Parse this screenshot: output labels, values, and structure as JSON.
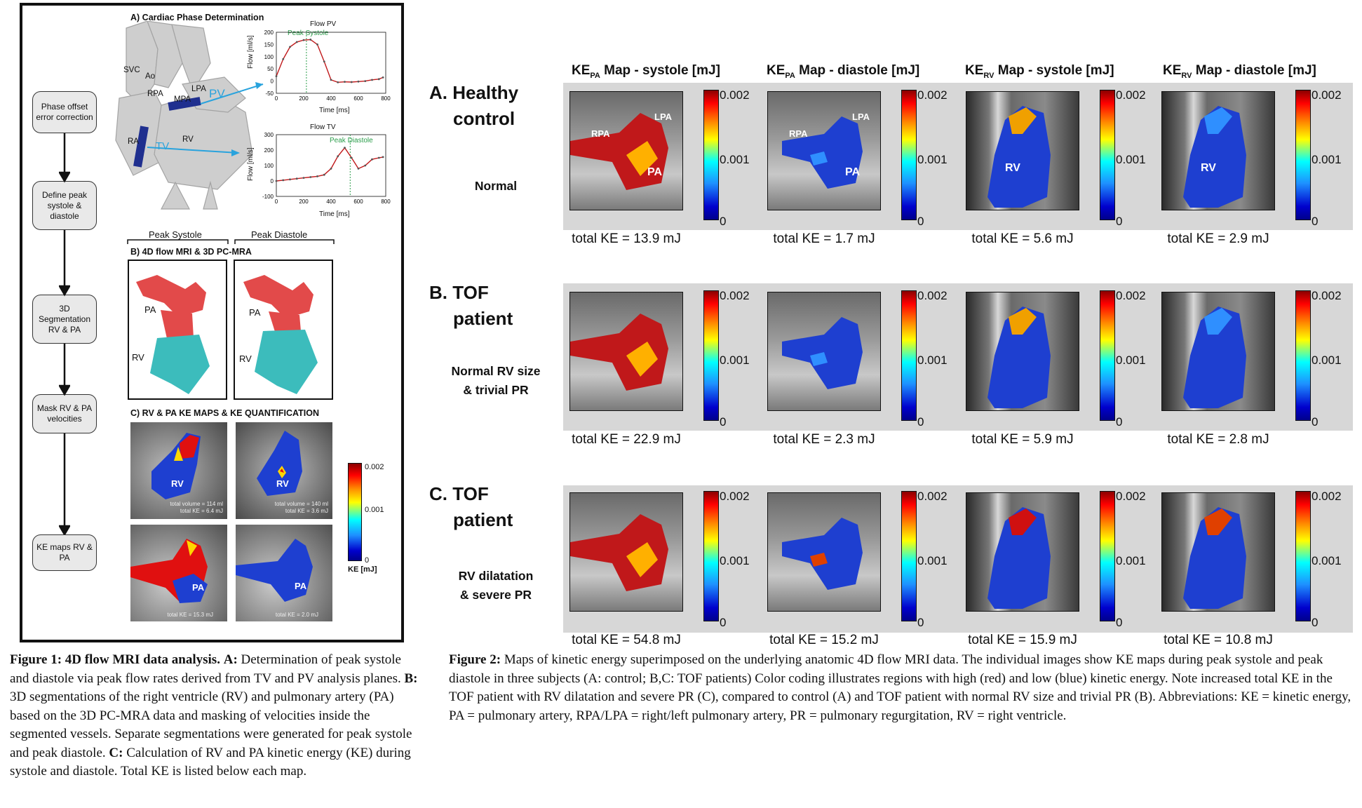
{
  "fig1": {
    "section_a_title": "A) Cardiac Phase Determination",
    "anatomy_labels": [
      "SVC",
      "Ao",
      "RPA",
      "LPA",
      "MPA",
      "RA",
      "RV",
      "PV",
      "TV"
    ],
    "flow_boxes": [
      "Phase offset error correction",
      "Define peak systole & diastole",
      "3D Segmentation RV & PA",
      "Mask RV & PA velocities",
      "KE maps RV & PA"
    ],
    "chart_pv": {
      "title": "Flow PV",
      "peak_label": "Peak Systole",
      "ylabel": "Flow [ml/s]",
      "xlabel": "Time [ms]"
    },
    "chart_tv": {
      "title": "Flow TV",
      "peak_label": "Peak Diastole",
      "ylabel": "Flow [ml/s]",
      "xlabel": "Time [ms]"
    },
    "peak_systole_label": "Peak Systole",
    "peak_diastole_label": "Peak Diastole",
    "section_b_title": "B) 4D flow MRI & 3D PC-MRA",
    "seg_labels": {
      "pa": "PA",
      "rv": "RV"
    },
    "section_c_title": "C) RV & PA KE MAPS & KE QUANTIFICATION",
    "ke_maps": {
      "rv_sys_label": "RV",
      "rv_sys_vol": "total volume = 114 ml",
      "rv_sys_ke": "total KE = 6.4 mJ",
      "rv_dia_label": "RV",
      "rv_dia_vol": "total volume = 140 ml",
      "rv_dia_ke": "total KE = 3.6 mJ",
      "pa_sys_label": "PA",
      "pa_sys_ke": "total KE = 15.3 mJ",
      "pa_dia_label": "PA",
      "pa_dia_ke": "total KE = 2.0 mJ"
    },
    "colorbar": {
      "max": "0.002",
      "mid": "0.001",
      "min": "0",
      "unit": "KE [mJ]"
    },
    "caption": {
      "bold_lead": "Figure 1: 4D flow MRI data analysis.",
      "a_lead": "A:",
      "a_text": "Determination of peak systole and diastole via peak flow rates derived from TV and PV analysis planes.",
      "b_lead": "B:",
      "b_text": "3D segmentations of the right ventricle (RV) and pulmonary artery (PA) based on the 3D PC-MRA data and masking of velocities inside the segmented vessels. Separate segmentations were generated for peak systole and peak diastole.",
      "c_lead": "C:",
      "c_text": "Calculation of RV and PA kinetic energy (KE) during systole and diastole. Total KE is listed below each map."
    }
  },
  "fig2": {
    "columns": [
      {
        "pre": "KE",
        "sub": "PA",
        "post": " Map - systole [mJ]"
      },
      {
        "pre": "KE",
        "sub": "PA",
        "post": " Map - diastole [mJ]"
      },
      {
        "pre": "KE",
        "sub": "RV",
        "post": " Map - systole [mJ]"
      },
      {
        "pre": "KE",
        "sub": "RV",
        "post": " Map - diastole [mJ]"
      }
    ],
    "colorbar": {
      "max": "0.002",
      "mid": "0.001",
      "min": "0"
    },
    "rows": [
      {
        "title_line1": "A. Healthy",
        "title_line2": "control",
        "sub_line1": "Normal",
        "sub_line2": "",
        "panel_labels": [
          [
            "RPA",
            "LPA",
            "PA"
          ],
          [
            "RPA",
            "LPA",
            "PA"
          ],
          [
            "RV"
          ],
          [
            "RV"
          ]
        ],
        "totals": [
          "total KE = 13.9 mJ",
          "total KE = 1.7 mJ",
          "total KE = 5.6 mJ",
          "total KE = 2.9 mJ"
        ]
      },
      {
        "title_line1": "B. TOF",
        "title_line2": "patient",
        "sub_line1": "Normal RV size",
        "sub_line2": "& trivial PR",
        "panel_labels": [
          [],
          [],
          [],
          []
        ],
        "totals": [
          "total KE = 22.9 mJ",
          "total KE = 2.3 mJ",
          "total KE = 5.9 mJ",
          "total KE = 2.8 mJ"
        ]
      },
      {
        "title_line1": "C. TOF",
        "title_line2": "patient",
        "sub_line1": "RV dilatation",
        "sub_line2": "& severe PR",
        "panel_labels": [
          [],
          [],
          [],
          []
        ],
        "totals": [
          "total KE = 54.8 mJ",
          "total KE = 15.2 mJ",
          "total KE = 15.9 mJ",
          "total KE = 10.8 mJ"
        ]
      }
    ],
    "caption": {
      "lead": "Figure 2:",
      "text": "Maps of kinetic energy superimposed on the underlying anatomic 4D flow MRI data. The individual images show KE maps during peak systole and peak diastole in three subjects (A: control; B,C: TOF patients) Color coding illustrates regions with high (red) and low (blue) kinetic energy. Note increased total KE in the TOF patient with RV dilatation and severe PR (C), compared to control (A) and TOF patient with normal RV size and trivial PR (B). Abbreviations: KE = kinetic energy, PA = pulmonary artery, RPA/LPA = right/left pulmonary artery, PR = pulmonary regurgitation, RV = right ventricle."
    }
  },
  "chart_data": [
    {
      "type": "line",
      "title": "Flow PV",
      "xlabel": "Time [ms]",
      "ylabel": "Flow [ml/s]",
      "xlim": [
        0,
        800
      ],
      "ylim": [
        -50,
        200
      ],
      "x": [
        0,
        50,
        100,
        150,
        200,
        250,
        300,
        350,
        400,
        450,
        500,
        550,
        600,
        650,
        700,
        750,
        780
      ],
      "values": [
        20,
        90,
        140,
        160,
        168,
        170,
        150,
        80,
        5,
        -5,
        -3,
        -4,
        -2,
        0,
        5,
        8,
        15
      ],
      "annotation": {
        "label": "Peak Systole",
        "x": 220
      }
    },
    {
      "type": "line",
      "title": "Flow TV",
      "xlabel": "Time [ms]",
      "ylabel": "Flow [ml/s]",
      "xlim": [
        0,
        800
      ],
      "ylim": [
        -100,
        300
      ],
      "x": [
        0,
        50,
        100,
        150,
        200,
        250,
        300,
        350,
        400,
        450,
        500,
        550,
        600,
        650,
        700,
        750,
        780
      ],
      "values": [
        0,
        5,
        10,
        15,
        20,
        25,
        30,
        40,
        80,
        160,
        215,
        150,
        80,
        100,
        140,
        150,
        155
      ],
      "annotation": {
        "label": "Peak Diastole",
        "x": 540
      }
    }
  ]
}
